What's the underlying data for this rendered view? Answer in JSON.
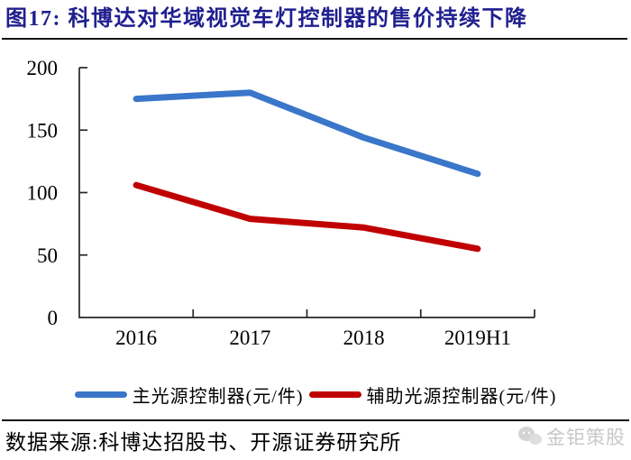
{
  "header": {
    "title": "图17: 科博达对华域视觉车灯控制器的售价持续下降"
  },
  "chart_data": {
    "type": "line",
    "title": "科博达对华域视觉车灯控制器的售价持续下降",
    "categories": [
      "2016",
      "2017",
      "2018",
      "2019H1"
    ],
    "series": [
      {
        "name": "主光源控制器(元/件)",
        "values": [
          175,
          180,
          144,
          115
        ],
        "color": "#3A76C9"
      },
      {
        "name": "辅助光源控制器(元/件)",
        "values": [
          106,
          79,
          72,
          55
        ],
        "color": "#C00000"
      }
    ],
    "xlabel": "",
    "ylabel": "",
    "ylim": [
      0,
      200
    ],
    "yticks": [
      0,
      50,
      100,
      150,
      200
    ],
    "grid": false,
    "legend_position": "bottom"
  },
  "footer": {
    "source": "数据来源:科博达招股书、开源证券研究所",
    "watermark": "金钜策股"
  },
  "colors": {
    "title": "#1F1F8F",
    "axis": "#262626",
    "series_primary": "#3A76C9",
    "series_secondary": "#C00000",
    "watermark": "#c8c8c8"
  }
}
